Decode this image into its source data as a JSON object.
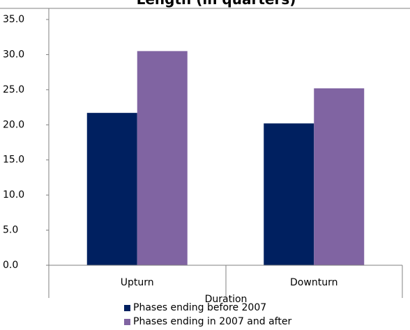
{
  "chart_data": {
    "type": "bar",
    "title": "Length (in quarters)",
    "xlabel": "Duration",
    "ylabel": "",
    "categories": [
      "Upturn",
      "Downturn"
    ],
    "ylim": [
      0,
      35
    ],
    "yticks": [
      "0.0",
      "5.0",
      "10.0",
      "15.0",
      "20.0",
      "25.0",
      "30.0",
      "35.0"
    ],
    "grid": false,
    "legend_position": "bottom",
    "series": [
      {
        "name": "Phases ending before 2007",
        "color": "#002060",
        "values": [
          21.7,
          20.2
        ]
      },
      {
        "name": "Phases ending in 2007 and after",
        "color": "#8064A2",
        "values": [
          30.5,
          25.2
        ]
      }
    ]
  }
}
